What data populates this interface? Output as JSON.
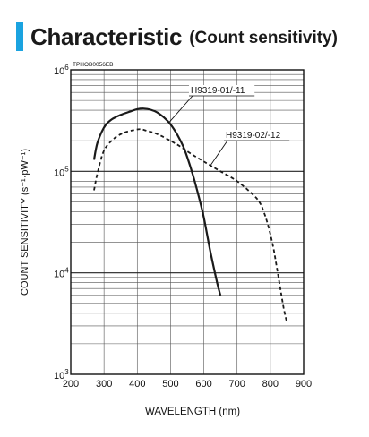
{
  "header": {
    "title": "Characteristic",
    "subtitle": "(Count sensitivity)",
    "accent_color": "#1aa3e0"
  },
  "chart_data": {
    "type": "line",
    "code": "TPHOB0056EB",
    "xlabel": "WAVELENGTH (nm)",
    "ylabel": "COUNT SENSITIVITY (s⁻¹·pW⁻¹)",
    "xlim": [
      200,
      900
    ],
    "ylim": [
      1000,
      1000000
    ],
    "yscale": "log",
    "grid": true,
    "xticks": [
      "200",
      "300",
      "400",
      "500",
      "600",
      "700",
      "800",
      "900"
    ],
    "yticks": [
      {
        "value": 1000,
        "base": "10",
        "exp": "3"
      },
      {
        "value": 10000,
        "base": "10",
        "exp": "4"
      },
      {
        "value": 100000,
        "base": "10",
        "exp": "5"
      },
      {
        "value": 1000000,
        "base": "10",
        "exp": "6"
      }
    ],
    "series": [
      {
        "name": "H9319-01/-11",
        "style": "solid",
        "x": [
          270,
          280,
          300,
          320,
          350,
          380,
          400,
          420,
          440,
          460,
          480,
          500,
          520,
          540,
          560,
          580,
          600,
          620,
          640,
          650
        ],
        "y": [
          130000,
          190000,
          270000,
          320000,
          360000,
          390000,
          410000,
          415000,
          405000,
          380000,
          340000,
          290000,
          230000,
          170000,
          110000,
          65000,
          35000,
          16000,
          8000,
          6000
        ]
      },
      {
        "name": "H9319-02/-12",
        "style": "dashed",
        "x": [
          270,
          280,
          300,
          330,
          360,
          390,
          410,
          430,
          450,
          470,
          500,
          530,
          560,
          600,
          650,
          700,
          750,
          770,
          780,
          790,
          800,
          810,
          820,
          830,
          840,
          850
        ],
        "y": [
          65000,
          95000,
          160000,
          210000,
          240000,
          255000,
          260000,
          250000,
          240000,
          225000,
          200000,
          175000,
          150000,
          125000,
          100000,
          80000,
          58000,
          48000,
          40000,
          32000,
          24000,
          17000,
          11000,
          7000,
          4500,
          3200
        ]
      }
    ],
    "annotations": [
      {
        "text": "H9319-01/-11",
        "series": 0,
        "at_x": 495
      },
      {
        "text": "H9319-02/-12",
        "series": 1,
        "at_x": 620
      }
    ]
  }
}
